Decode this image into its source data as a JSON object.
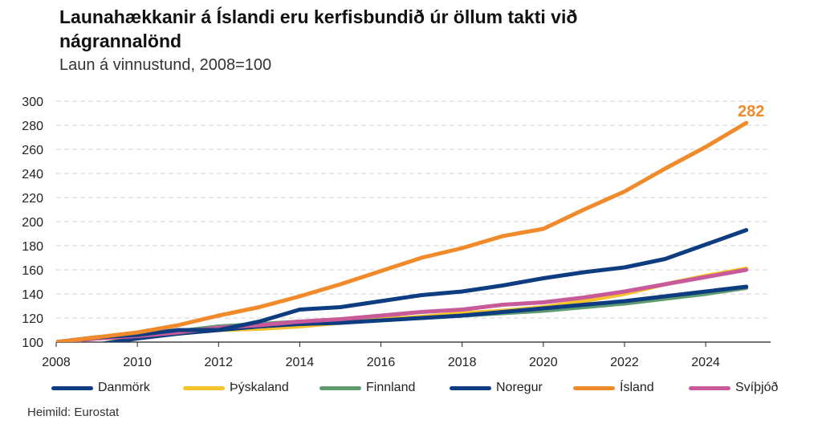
{
  "chart_data": {
    "type": "line",
    "title": "Launahækkanir á Íslandi eru kerfisbundið úr öllum takti við nágrannalönd",
    "subtitle": "Laun á vinnustund, 2008=100",
    "source": "Heimild: Eurostat",
    "x": [
      2008,
      2009,
      2010,
      2011,
      2012,
      2013,
      2014,
      2015,
      2016,
      2017,
      2018,
      2019,
      2020,
      2021,
      2022,
      2023,
      2024,
      2025
    ],
    "xticks": [
      2008,
      2010,
      2012,
      2014,
      2016,
      2018,
      2020,
      2022,
      2024
    ],
    "yticks": [
      100,
      120,
      140,
      160,
      180,
      200,
      220,
      240,
      260,
      280,
      300
    ],
    "ylim": [
      100,
      300
    ],
    "grid": true,
    "legend_position": "bottom",
    "series": [
      {
        "name": "Danmörk",
        "color": "#0d3d80",
        "values": [
          98,
          98,
          103,
          107,
          110,
          113,
          115,
          116,
          118,
          120,
          122,
          125,
          128,
          131,
          134,
          138,
          142,
          146
        ]
      },
      {
        "name": "Þýskaland",
        "color": "#f5c32c",
        "values": [
          100,
          103,
          104,
          107,
          110,
          111,
          113,
          116,
          119,
          121,
          124,
          126,
          129,
          134,
          140,
          148,
          155,
          161
        ]
      },
      {
        "name": "Finnland",
        "color": "#5e9b6f",
        "values": [
          100,
          104,
          106,
          109,
          113,
          115,
          117,
          118,
          120,
          120,
          122,
          124,
          126,
          129,
          132,
          136,
          140,
          145
        ]
      },
      {
        "name": "Noregur",
        "color": "#0d3d80",
        "values": [
          100,
          104,
          106,
          110,
          110,
          117,
          127,
          129,
          134,
          139,
          142,
          147,
          153,
          158,
          162,
          169,
          181,
          193
        ]
      },
      {
        "name": "Ísland",
        "color": "#f08a2a",
        "values": [
          100,
          104,
          108,
          114,
          122,
          129,
          138,
          148,
          159,
          170,
          178,
          188,
          194,
          210,
          225,
          244,
          262,
          282
        ]
      },
      {
        "name": "Svíþjóð",
        "color": "#c85a9a",
        "values": [
          100,
          103,
          105,
          108,
          112,
          114,
          117,
          119,
          122,
          125,
          127,
          131,
          133,
          137,
          142,
          148,
          154,
          160
        ]
      }
    ],
    "annotation": {
      "series": "Ísland",
      "x": 2025,
      "y": 282,
      "label": "282",
      "color": "#f08a2a"
    }
  }
}
